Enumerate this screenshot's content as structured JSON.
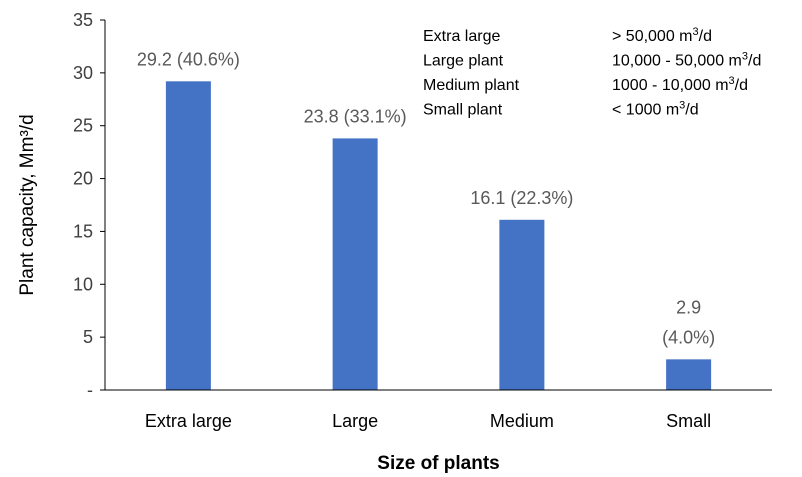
{
  "chart_data": {
    "type": "bar",
    "title": "",
    "xlabel": "Size of plants",
    "ylabel": "Plant capacity, Mm³/d",
    "categories": [
      "Extra large",
      "Large",
      "Medium",
      "Small"
    ],
    "values": [
      29.2,
      23.8,
      16.1,
      2.9
    ],
    "data_labels": [
      [
        "29.2 (40.6%)"
      ],
      [
        "23.8 (33.1%)"
      ],
      [
        "16.1 (22.3%)"
      ],
      [
        "2.9",
        "(4.0%)"
      ]
    ],
    "ylim": [
      0,
      35
    ],
    "yticks": [
      0,
      5,
      10,
      15,
      20,
      25,
      30,
      35
    ],
    "ytick_labels": [
      "-",
      "5",
      "10",
      "15",
      "20",
      "25",
      "30",
      "35"
    ],
    "grid": false,
    "bar_color": "#4472C4",
    "legend_table": [
      {
        "name": "Extra large",
        "range_prefix": "> 50,000 m",
        "unit_sup": "3",
        "unit_suffix": "/d"
      },
      {
        "name": "Large plant",
        "range_prefix": "10,000 - 50,000 m",
        "unit_sup": "3",
        "unit_suffix": "/d"
      },
      {
        "name": "Medium plant",
        "range_prefix": "1000 - 10,000 m",
        "unit_sup": "3",
        "unit_suffix": "/d"
      },
      {
        "name": "Small plant",
        "range_prefix": "< 1000 m",
        "unit_sup": "3",
        "unit_suffix": "/d"
      }
    ]
  }
}
